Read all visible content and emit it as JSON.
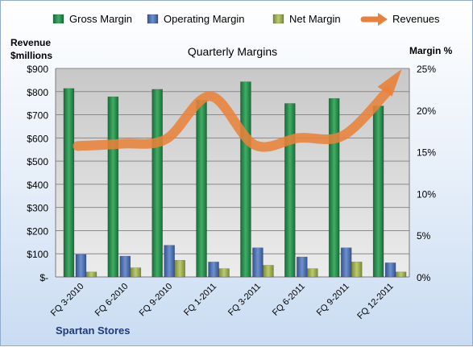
{
  "chart_data": {
    "type": "bar",
    "title": "Quarterly Margins",
    "footer": "Spartan Stores",
    "y_left_label_line1": "Revenue",
    "y_left_label_line2": "$millions",
    "y_right_label": "Margin %",
    "categories": [
      "FQ 3-2010",
      "FQ 6-2010",
      "FQ 9-2010",
      "FQ 1-2011",
      "FQ 3-2011",
      "FQ 6-2011",
      "FQ 9-2011",
      "FQ 12-2011"
    ],
    "y_left_ticks": [
      "$-",
      "$100",
      "$200",
      "$300",
      "$400",
      "$500",
      "$600",
      "$700",
      "$800",
      "$900"
    ],
    "y_right_ticks": [
      "0%",
      "5%",
      "10%",
      "15%",
      "20%",
      "25%"
    ],
    "y_left_range": [
      0,
      900
    ],
    "y_right_range": [
      0,
      25
    ],
    "grid": true,
    "legend_position": "top",
    "series": [
      {
        "name": "Gross Margin",
        "axis": "right",
        "kind": "bar",
        "color": "#2e8b4e",
        "values": [
          22.6,
          21.6,
          22.5,
          21.2,
          23.4,
          20.8,
          21.4,
          20.5
        ]
      },
      {
        "name": "Operating Margin",
        "axis": "right",
        "kind": "bar",
        "color": "#4f6fb0",
        "values": [
          2.7,
          2.5,
          3.8,
          1.8,
          3.5,
          2.4,
          3.5,
          1.7
        ]
      },
      {
        "name": "Net Margin",
        "axis": "right",
        "kind": "bar",
        "color": "#9fb056",
        "values": [
          0.6,
          1.1,
          2.0,
          1.0,
          1.4,
          1.0,
          1.8,
          0.6
        ]
      },
      {
        "name": "Revenues",
        "axis": "left",
        "kind": "line",
        "color": "#e8823a",
        "values": [
          565,
          575,
          595,
          780,
          570,
          600,
          610,
          800
        ]
      }
    ]
  }
}
